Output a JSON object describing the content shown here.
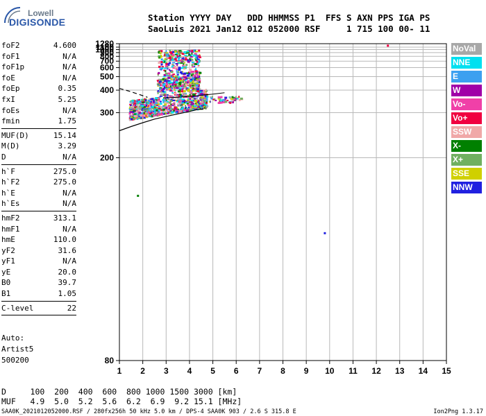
{
  "logo": {
    "line1": "Lowell",
    "line2": "DIGISONDE"
  },
  "header": {
    "line1": "Station YYYY DAY   DDD HHMMSS P1  FFS S AXN PPS IGA PS",
    "line2": "SaoLuis 2021 Jan12 012 052000 RSF     1 715 100 00- 11"
  },
  "params": [
    {
      "label": "foF2",
      "value": "4.600"
    },
    {
      "label": "foF1",
      "value": "N/A"
    },
    {
      "label": "foF1p",
      "value": "N/A"
    },
    {
      "label": "foE",
      "value": "N/A"
    },
    {
      "label": "foEp",
      "value": "0.35"
    },
    {
      "label": "fxI",
      "value": "5.25"
    },
    {
      "label": "foEs",
      "value": "N/A"
    },
    {
      "label": "fmin",
      "value": "1.75"
    },
    {
      "sep": true
    },
    {
      "label": "MUF(D)",
      "value": "15.14"
    },
    {
      "label": "M(D)",
      "value": "3.29"
    },
    {
      "label": "D",
      "value": "N/A"
    },
    {
      "sep": true
    },
    {
      "label": "h`F",
      "value": "275.0"
    },
    {
      "label": "h`F2",
      "value": "275.0"
    },
    {
      "label": "h`E",
      "value": "N/A"
    },
    {
      "label": "h`Es",
      "value": "N/A"
    },
    {
      "sep": true
    },
    {
      "label": "hmF2",
      "value": "313.1"
    },
    {
      "label": "hmF1",
      "value": "N/A"
    },
    {
      "label": "hmE",
      "value": "110.0"
    },
    {
      "label": "yF2",
      "value": "31.6"
    },
    {
      "label": "yF1",
      "value": "N/A"
    },
    {
      "label": "yE",
      "value": "20.0"
    },
    {
      "label": "B0",
      "value": "39.7"
    },
    {
      "label": "B1",
      "value": "1.05"
    },
    {
      "sep": true
    },
    {
      "label": "C-level",
      "value": "22"
    },
    {
      "sep": true
    }
  ],
  "auto": {
    "line1": "Auto:",
    "line2": "Artist5",
    "line3": "500200"
  },
  "legend": [
    {
      "label": "NoVal",
      "color": "#a8a8a8"
    },
    {
      "label": "NNE",
      "color": "#00e0f0"
    },
    {
      "label": "E",
      "color": "#3ca0f0"
    },
    {
      "label": "W",
      "color": "#a000a8"
    },
    {
      "label": "Vo-",
      "color": "#f040a8"
    },
    {
      "label": "Vo+",
      "color": "#f00040"
    },
    {
      "label": "SSW",
      "color": "#f0a8a8"
    },
    {
      "label": "X-",
      "color": "#008000"
    },
    {
      "label": "X+",
      "color": "#70b060"
    },
    {
      "label": "SSE",
      "color": "#d0d000"
    },
    {
      "label": "NNW",
      "color": "#2020e0"
    }
  ],
  "muf_table": {
    "line1": "D     100  200  400  600  800 1000 1500 3000 [km]",
    "line2": "MUF   4.9  5.0  5.2  5.6  6.2  6.9  9.2 15.1 [MHz]"
  },
  "footer": {
    "left": "SAA0K_2021012052000.RSF / 280fx256h 50 kHz 5.0 km / DPS-4 SAA0K 903 / 2.6 S 315.8 E",
    "right": "Ion2Png 1.3.17"
  },
  "chart_data": {
    "type": "scatter",
    "xlim": [
      1,
      15
    ],
    "xticks": [
      "1",
      "2",
      "3",
      "4",
      "5",
      "6",
      "7",
      "8",
      "9",
      "10",
      "11",
      "12",
      "13",
      "14",
      "15"
    ],
    "ylim": [
      80,
      1280
    ],
    "yticks": [
      "80",
      "200",
      "300",
      "400",
      "500",
      "600",
      "700",
      "800",
      "900",
      "1000",
      "1100",
      "1280"
    ],
    "yscale": "reciprocal",
    "grid": true,
    "scatter_region": {
      "dense_freq_range": [
        1.4,
        4.7
      ],
      "dense_height_range": [
        270,
        440
      ],
      "column_freq_range": [
        2.6,
        4.4
      ],
      "column_height_range": [
        430,
        1000
      ]
    },
    "isolated_points": [
      {
        "x": 9.75,
        "y": 129,
        "color": "#2020e0"
      },
      {
        "x": 12.45,
        "y": 1225,
        "color": "#f00040"
      },
      {
        "x": 1.75,
        "y": 157,
        "color": "#008000"
      }
    ],
    "profile_curve": [
      {
        "x": 1.0,
        "y": 250
      },
      {
        "x": 1.5,
        "y": 260
      },
      {
        "x": 2.0,
        "y": 270
      },
      {
        "x": 2.5,
        "y": 280
      },
      {
        "x": 3.0,
        "y": 288
      },
      {
        "x": 3.5,
        "y": 296
      },
      {
        "x": 4.0,
        "y": 304
      },
      {
        "x": 4.3,
        "y": 310
      },
      {
        "x": 4.6,
        "y": 313
      }
    ],
    "dashed_curve": [
      {
        "x": 1.0,
        "y": 410
      },
      {
        "x": 1.4,
        "y": 395
      },
      {
        "x": 1.8,
        "y": 378
      },
      {
        "x": 2.2,
        "y": 362
      }
    ],
    "muf_curve": [
      {
        "x": 3.0,
        "y": 360
      },
      {
        "x": 3.5,
        "y": 362
      },
      {
        "x": 4.0,
        "y": 366
      },
      {
        "x": 4.5,
        "y": 372
      },
      {
        "x": 5.0,
        "y": 378
      },
      {
        "x": 5.5,
        "y": 385
      }
    ]
  }
}
